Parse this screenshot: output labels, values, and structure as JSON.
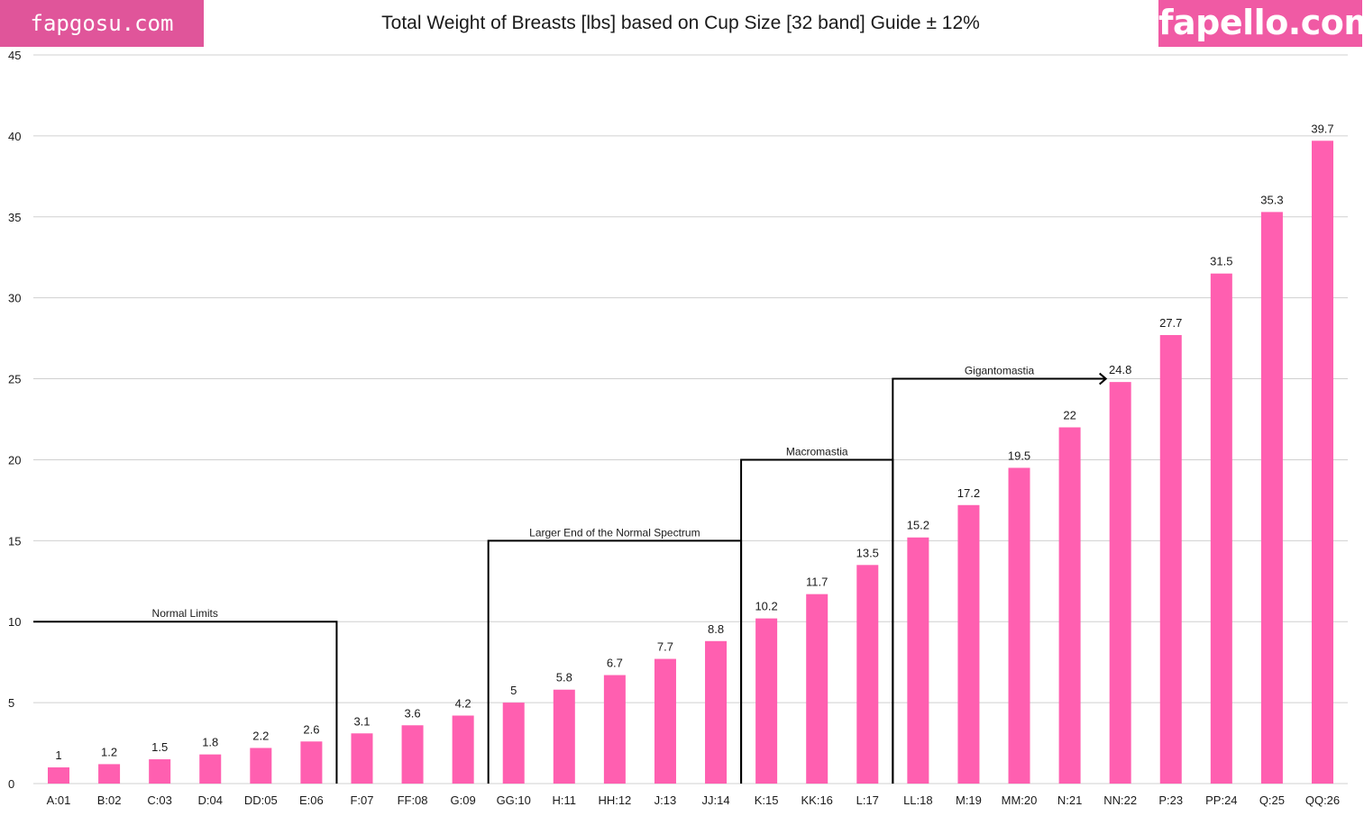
{
  "watermarks": {
    "left": "fapgosu.com",
    "right": "fapello.com"
  },
  "colors": {
    "bar": "#ff5fb0",
    "grid": "#d0d0d0",
    "bracket": "#000000",
    "text": "#1a1a1a"
  },
  "chart_data": {
    "type": "bar",
    "title": "Total Weight of Breasts [lbs] based on Cup Size [32 band] Guide ± 12%",
    "xlabel": "",
    "ylabel": "",
    "ylim": [
      0,
      45
    ],
    "yticks": [
      0,
      5,
      10,
      15,
      20,
      25,
      30,
      35,
      40,
      45
    ],
    "grid": true,
    "categories": [
      "A:01",
      "B:02",
      "C:03",
      "D:04",
      "DD:05",
      "E:06",
      "F:07",
      "FF:08",
      "G:09",
      "GG:10",
      "H:11",
      "HH:12",
      "J:13",
      "JJ:14",
      "K:15",
      "KK:16",
      "L:17",
      "LL:18",
      "M:19",
      "MM:20",
      "N:21",
      "NN:22",
      "P:23",
      "PP:24",
      "Q:25",
      "QQ:26"
    ],
    "values": [
      1,
      1.2,
      1.5,
      1.8,
      2.2,
      2.6,
      3.1,
      3.6,
      4.2,
      5,
      5.8,
      6.7,
      7.7,
      8.8,
      10.2,
      11.7,
      13.5,
      15.2,
      17.2,
      19.5,
      22,
      24.8,
      27.7,
      31.5,
      35.3,
      39.7
    ],
    "data_labels": [
      "1",
      "1.2",
      "1.5",
      "1.8",
      "2.2",
      "2.6",
      "3.1",
      "3.6",
      "4.2",
      "5",
      "5.8",
      "6.7",
      "7.7",
      "8.8",
      "10.2",
      "11.7",
      "13.5",
      "15.2",
      "17.2",
      "19.5",
      "22",
      "24.8",
      "27.7",
      "31.5",
      "35.3",
      "39.7"
    ],
    "annotations": [
      {
        "text": "Normal Limits",
        "level": 10,
        "from_category": "A:01",
        "to_boundary_after": "E:06",
        "arrow": false
      },
      {
        "text": "Larger End of the Normal Spectrum",
        "level": 15,
        "from_boundary_after": "G:09",
        "to_boundary_after": "JJ:14",
        "arrow": false
      },
      {
        "text": "Macromastia",
        "level": 20,
        "from_boundary_after": "JJ:14",
        "to_boundary_after": "L:17",
        "arrow": false
      },
      {
        "text": "Gigantomastia",
        "level": 25,
        "from_boundary_after": "L:17",
        "to_category": "NN:22",
        "arrow": true
      }
    ]
  }
}
